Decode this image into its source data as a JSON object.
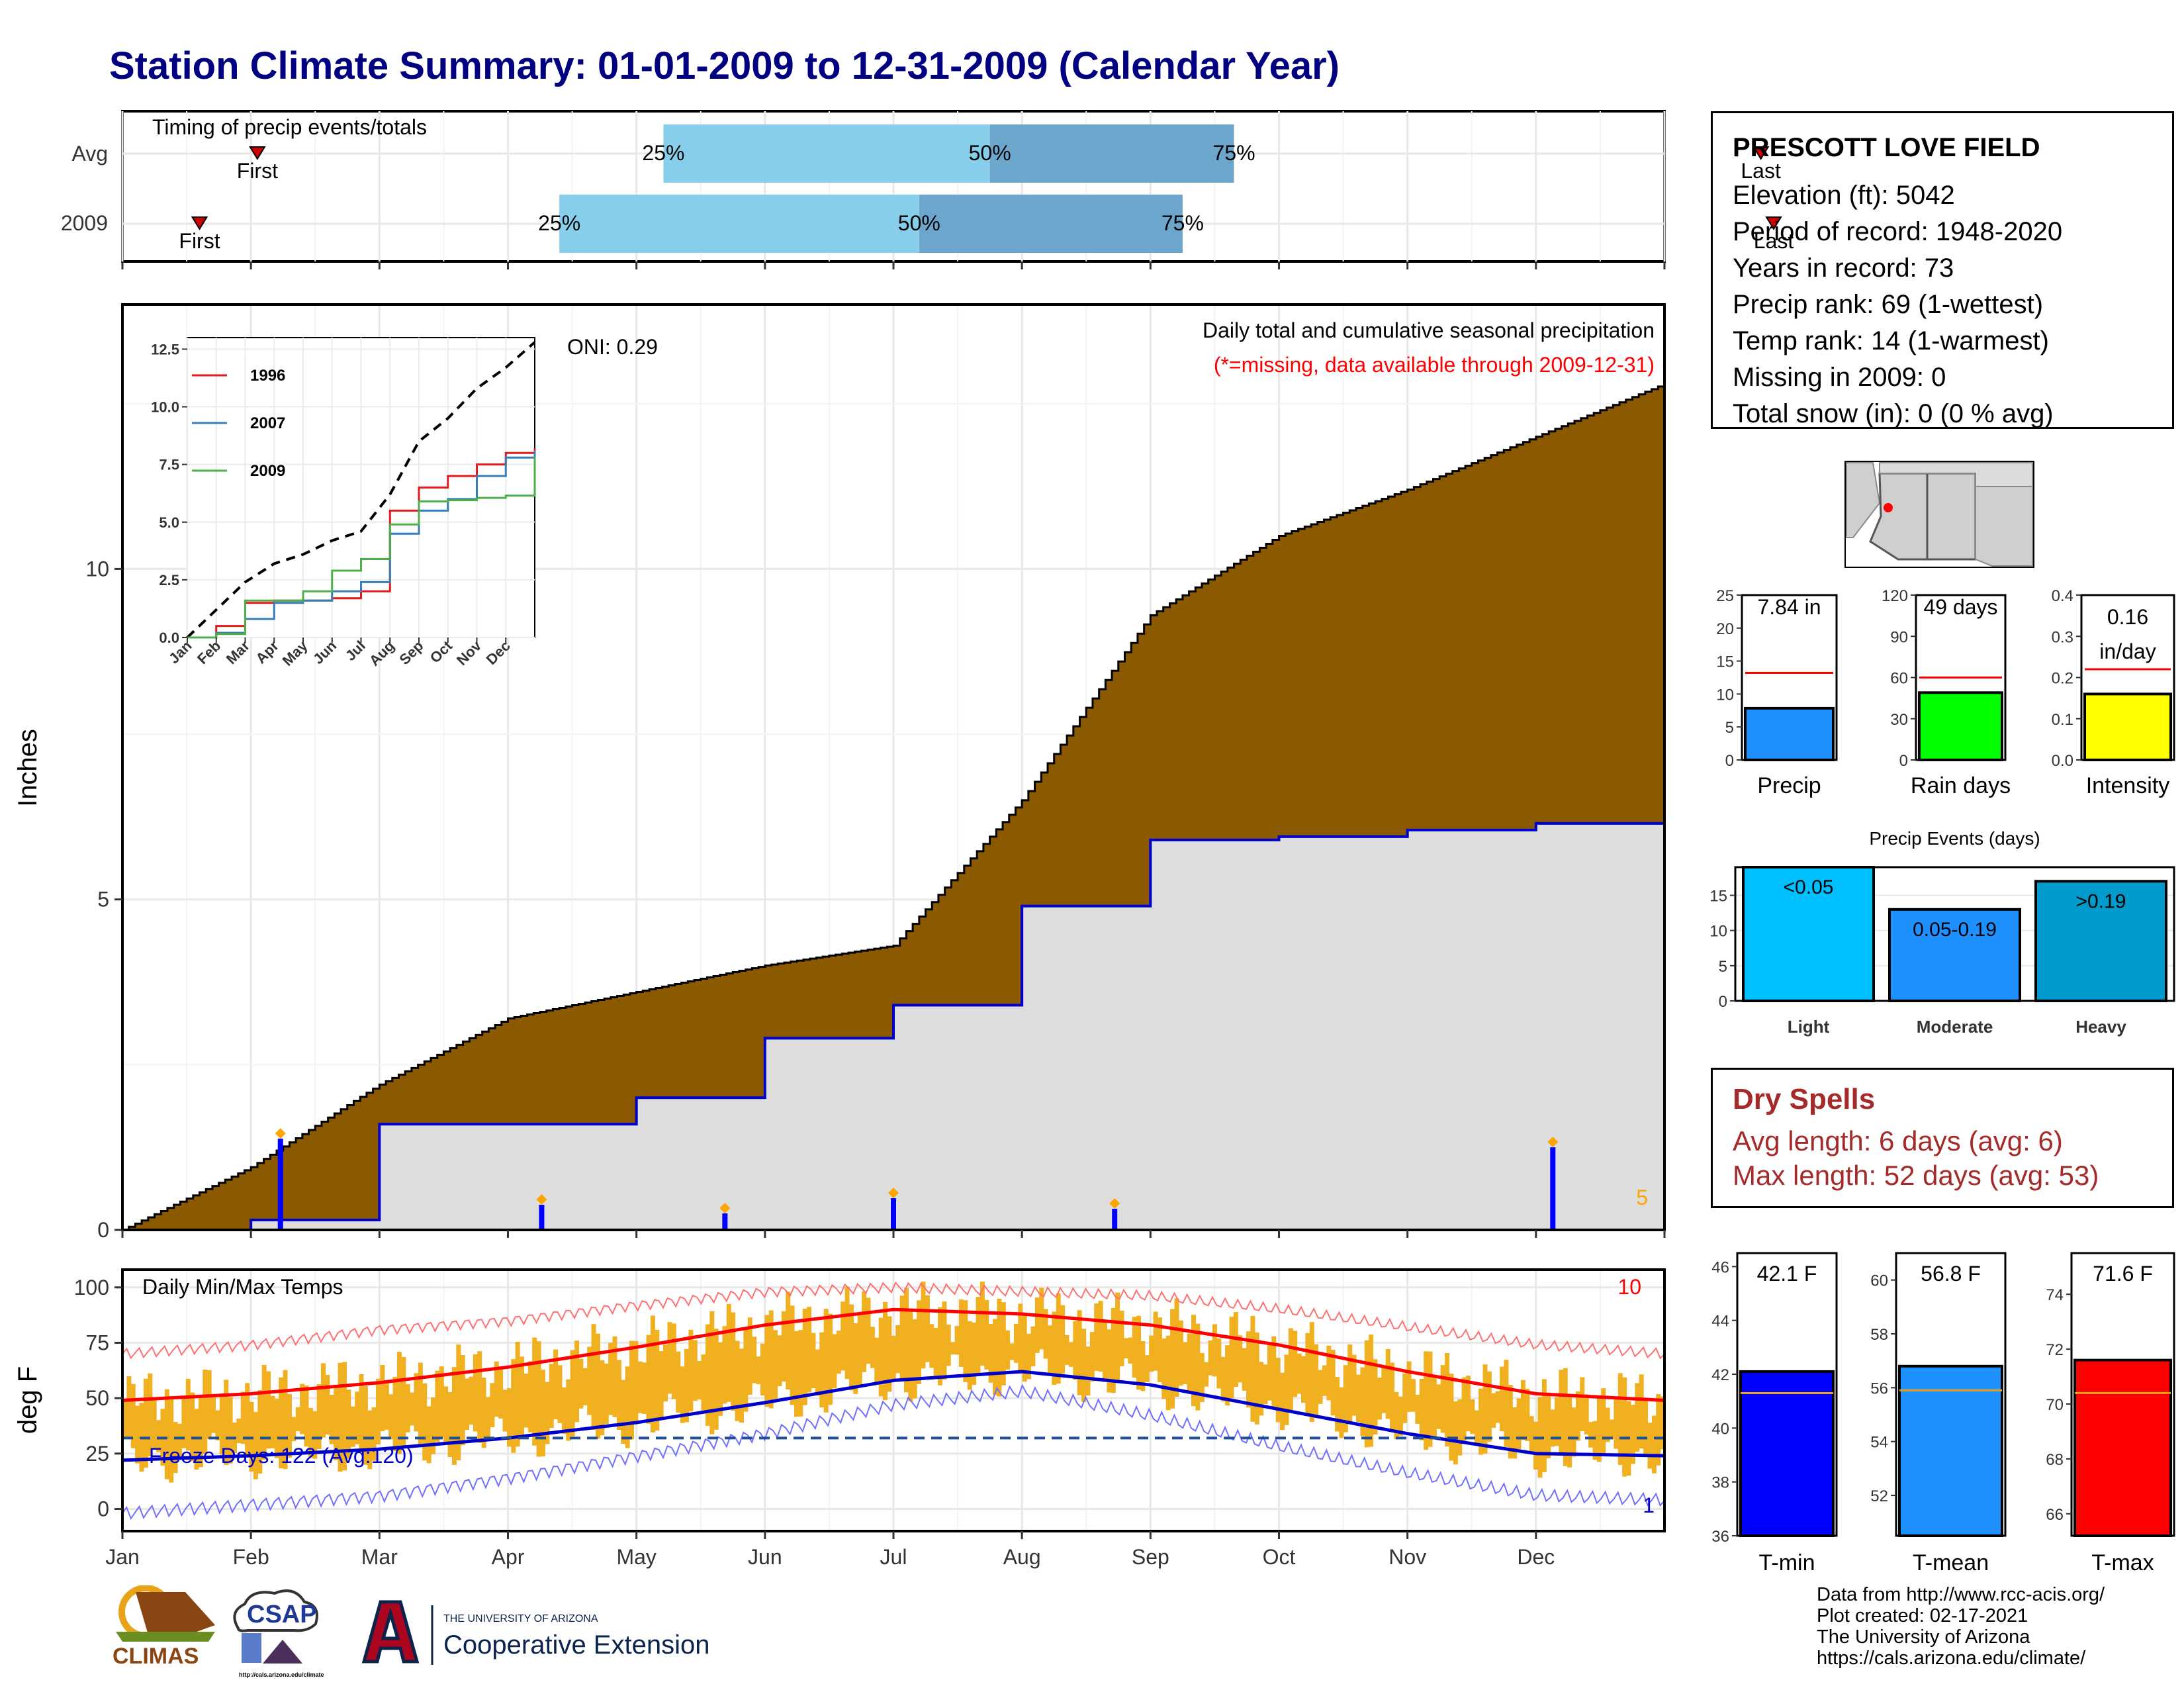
{
  "title": "Station Climate Summary: 01-01-2009 to 12-31-2009 (Calendar Year)",
  "colors": {
    "title": "#000080",
    "precip_fill": "#8B5A00",
    "current_fill": "#DEDEDE",
    "current_line": "#0000CC",
    "daily_bar": "#0000FF",
    "max_marker": "#FFA500",
    "temp_bar": "#F0B020",
    "avg_max": "#FF0000",
    "avg_min": "#0000CC",
    "dry_spell": "#A52A2A",
    "timing_light": "#87CEEB",
    "timing_dark": "#6CA6CD"
  },
  "timing_panel": {
    "label": "Timing of precip events/totals",
    "rows": [
      {
        "name": "Avg",
        "first": 1.05,
        "q25": 4.21,
        "q50": 6.75,
        "q75": 8.65,
        "last": 12.75,
        "first_label": "First",
        "last_label": "Last",
        "q25_label": "25%",
        "q50_label": "50%",
        "q75_label": "75%"
      },
      {
        "name": "2009",
        "first": 0.6,
        "q25": 3.4,
        "q50": 6.2,
        "q75": 8.25,
        "last": 12.85,
        "first_label": "First",
        "last_label": "Last",
        "q25_label": "25%",
        "q50_label": "50%",
        "q75_label": "75%"
      }
    ]
  },
  "precip_panel": {
    "annotation_title": "Daily total and cumulative seasonal precipitation",
    "annotation_missing": "(*=missing, data available through 2009-12-31)",
    "oni": "ONI: 0.29",
    "ylabel": "Inches",
    "yticks": [
      0,
      5,
      10
    ],
    "ylim": [
      0,
      14
    ],
    "corner_count": "5"
  },
  "inset": {
    "yticks": [
      "0.0",
      "2.5",
      "5.0",
      "7.5",
      "10.0",
      "12.5"
    ],
    "xticks": [
      "Jan",
      "Feb",
      "Mar",
      "Apr",
      "May",
      "Jun",
      "Jul",
      "Aug",
      "Sep",
      "Oct",
      "Nov",
      "Dec"
    ],
    "legend": [
      {
        "name": "1996",
        "color": "#E41A1C"
      },
      {
        "name": "2007",
        "color": "#377EB8"
      },
      {
        "name": "2009",
        "color": "#4DAF4A"
      }
    ]
  },
  "temp_panel": {
    "label": "Daily Min/Max Temps",
    "ylabel": "deg F",
    "yticks": [
      0,
      25,
      50,
      75,
      100
    ],
    "freeze_label": "Freeze Days: 122 (Avg:120)",
    "count_high": "10",
    "count_low": "1"
  },
  "months": [
    "Jan",
    "Feb",
    "Mar",
    "Apr",
    "May",
    "Jun",
    "Jul",
    "Aug",
    "Sep",
    "Oct",
    "Nov",
    "Dec"
  ],
  "info": {
    "station": "PRESCOTT LOVE FIELD",
    "lines": [
      "Elevation (ft): 5042",
      "Period of record: 1948-2020",
      "Years in record: 73",
      "Precip rank: 69 (1-wettest)",
      "Temp rank: 14 (1-warmest)",
      "Missing in 2009: 0",
      "Total snow (in): 0 (0 % avg)"
    ]
  },
  "dry_spells": {
    "title": "Dry Spells",
    "avg": "Avg length: 6 days (avg: 6)",
    "max": "Max length: 52 days (avg: 53)"
  },
  "credits": [
    "Data from http://www.rcc-acis.org/",
    "Plot created: 02-17-2021",
    "The University of Arizona",
    "https://cals.arizona.edu/climate/"
  ],
  "logos": {
    "climas": "CLIMAS",
    "csap": "CSAP",
    "csap_url": "http://cals.arizona.edu/climate",
    "ua_top": "THE UNIVERSITY OF ARIZONA",
    "ua_bottom": "Cooperative Extension"
  },
  "chart_data": [
    {
      "type": "area",
      "title": "Daily total and cumulative seasonal precipitation",
      "ylabel": "Inches",
      "ylim": [
        0,
        14
      ],
      "x": [
        "Jan",
        "Feb",
        "Mar",
        "Apr",
        "May",
        "Jun",
        "Jul",
        "Aug",
        "Sep",
        "Oct",
        "Nov",
        "Dec",
        "Dec 31"
      ],
      "series": [
        {
          "name": "",
          "values": [
            0,
            0.95,
            2.2,
            3.2,
            3.6,
            4.0,
            4.3,
            6.5,
            9.3,
            10.5,
            11.2,
            12.0,
            12.8
          ]
        },
        {
          "name": "",
          "values": [
            0,
            0.15,
            1.6,
            1.6,
            2.0,
            2.9,
            3.4,
            4.9,
            5.9,
            5.95,
            6.05,
            6.15,
            7.84
          ]
        }
      ],
      "daily_bars": [
        {
          "date": "Feb 08",
          "value": 1.38
        },
        {
          "date": "Apr 09",
          "value": 0.38
        },
        {
          "date": "May 22",
          "value": 0.25
        },
        {
          "date": "Jul 01",
          "value": 0.48
        },
        {
          "date": "Aug 23",
          "value": 0.32
        },
        {
          "date": "Dec 05",
          "value": 1.25
        }
      ]
    },
    {
      "type": "line",
      "title": "",
      "ylim": [
        0,
        13
      ],
      "x": [
        "Jan",
        "Feb",
        "Mar",
        "Apr",
        "May",
        "Jun",
        "Jul",
        "Aug",
        "Sep",
        "Oct",
        "Nov",
        "Dec",
        "Dec 31"
      ],
      "series": [
        {
          "name": "",
          "values": [
            0,
            1.2,
            2.4,
            3.2,
            3.6,
            4.2,
            4.6,
            6.2,
            8.5,
            9.5,
            10.8,
            11.7,
            12.8
          ]
        },
        {
          "name": "1996",
          "values": [
            0,
            0.5,
            1.5,
            1.6,
            1.6,
            1.7,
            2.0,
            5.5,
            6.5,
            7.0,
            7.5,
            8.0,
            8.2
          ]
        },
        {
          "name": "2007",
          "values": [
            0,
            0.2,
            0.8,
            1.5,
            1.6,
            2.0,
            2.4,
            4.5,
            5.5,
            6.0,
            7.0,
            7.8,
            8.1
          ]
        },
        {
          "name": "2009",
          "values": [
            0,
            0.15,
            1.6,
            1.6,
            2.0,
            2.9,
            3.4,
            4.9,
            5.9,
            5.95,
            6.05,
            6.15,
            7.84
          ]
        }
      ]
    },
    {
      "type": "line",
      "title": "Daily Min/Max Temps",
      "ylabel": "deg F",
      "ylim": [
        -10,
        108
      ],
      "x": [
        "Jan",
        "Feb",
        "Mar",
        "Apr",
        "May",
        "Jun",
        "Jul",
        "Aug",
        "Sep",
        "Oct",
        "Nov",
        "Dec",
        "Dec 31"
      ],
      "series": [
        {
          "name": "",
          "values": [
            49,
            52,
            57,
            64,
            73,
            83,
            90,
            88,
            83,
            74,
            62,
            52,
            49
          ]
        },
        {
          "name": "",
          "values": [
            22,
            24,
            27,
            32,
            39,
            48,
            58,
            62,
            56,
            45,
            34,
            25,
            24
          ]
        },
        {
          "name": "",
          "values": [
            70,
            74,
            81,
            85,
            92,
            98,
            100,
            98,
            96,
            90,
            82,
            74,
            70
          ]
        },
        {
          "name": "",
          "values": [
            -2,
            2,
            6,
            14,
            24,
            34,
            47,
            53,
            42,
            28,
            16,
            6,
            4
          ]
        }
      ],
      "freeze_line": 32
    },
    {
      "type": "bar",
      "categories": [
        "Precip"
      ],
      "values": [
        7.84
      ],
      "average": 13.2,
      "ylim": [
        0,
        25
      ],
      "label": "7.84 in",
      "yticks": [
        0,
        5,
        10,
        15,
        20,
        25
      ],
      "color": "#1E90FF"
    },
    {
      "type": "bar",
      "categories": [
        "Rain days"
      ],
      "values": [
        49
      ],
      "average": 60,
      "ylim": [
        0,
        120
      ],
      "label": "49 days",
      "yticks": [
        0,
        30,
        60,
        90,
        120
      ],
      "color": "#00FF00"
    },
    {
      "type": "bar",
      "categories": [
        "Intensity"
      ],
      "values": [
        0.16
      ],
      "average": 0.22,
      "ylim": [
        0,
        0.4
      ],
      "label": "0.16",
      "label2": "in/day",
      "yticks": [
        "0.0",
        "0.1",
        "0.2",
        "0.3",
        "0.4"
      ],
      "color": "#FFFF00"
    },
    {
      "type": "bar",
      "title": "Precip Events (days)",
      "categories": [
        "Light",
        "Moderate",
        "Heavy"
      ],
      "values": [
        19,
        13,
        17
      ],
      "labels": [
        "<0.05",
        "0.05-0.19",
        ">0.19"
      ],
      "ylim": [
        0,
        19
      ],
      "yticks": [
        0,
        5,
        10,
        15
      ],
      "colors": [
        "#00BFFF",
        "#1E90FF",
        "#009ACD"
      ]
    },
    {
      "type": "bar",
      "categories": [
        "T-min"
      ],
      "values": [
        42.1
      ],
      "average": 41.3,
      "ylim": [
        36,
        46.5
      ],
      "label": "42.1 F",
      "yticks": [
        36,
        38,
        40,
        42,
        44,
        46
      ],
      "color": "#0000FF"
    },
    {
      "type": "bar",
      "categories": [
        "T-mean"
      ],
      "values": [
        56.8
      ],
      "average": 55.9,
      "ylim": [
        50.5,
        61
      ],
      "label": "56.8 F",
      "yticks": [
        52,
        54,
        56,
        58,
        60
      ],
      "color": "#1E90FF"
    },
    {
      "type": "bar",
      "categories": [
        "T-max"
      ],
      "values": [
        71.6
      ],
      "average": 70.4,
      "ylim": [
        65.2,
        75.5
      ],
      "label": "71.6 F",
      "yticks": [
        66,
        68,
        70,
        72,
        74
      ],
      "color": "#FF0000"
    }
  ]
}
